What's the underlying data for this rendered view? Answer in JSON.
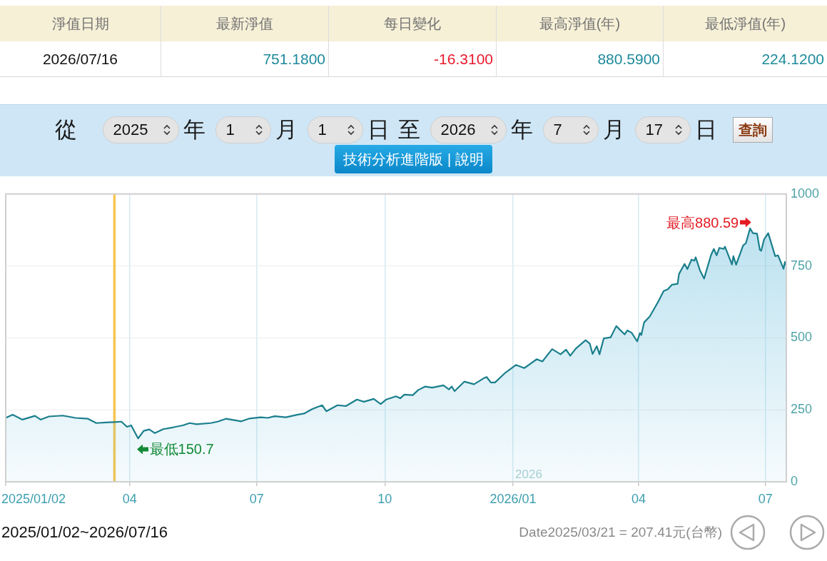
{
  "chart_data": [
    {
      "type": "other",
      "categories": [
        "淨值日期",
        "最新淨值",
        "每日變化",
        "最高淨值(年)",
        "最低淨值(年)"
      ],
      "annotations": [
        "2026/07/16",
        "751.1800",
        "-16.3100",
        "880.5900",
        "224.1200"
      ]
    },
    {
      "type": "other",
      "annotations": [
        "從",
        "2025",
        "年",
        "1",
        "月",
        "1",
        "日",
        "至",
        "2026",
        "年",
        "7",
        "月",
        "17",
        "日",
        "查詢",
        "技術分析進階版 | 說明"
      ]
    },
    {
      "type": "area",
      "color": "#1a7f8c",
      "x": [
        "2025-01-02",
        "2025-01-07",
        "2025-01-14",
        "2025-01-23",
        "2025-01-27",
        "2025-02-02",
        "2025-02-12",
        "2025-02-21",
        "2025-03-02",
        "2025-03-08",
        "2025-03-15",
        "2025-03-21",
        "2025-03-26",
        "2025-03-30",
        "2025-04-02",
        "2025-04-07",
        "2025-04-11",
        "2025-04-15",
        "2025-04-19",
        "2025-04-25",
        "2025-05-02",
        "2025-05-09",
        "2025-05-14",
        "2025-05-19",
        "2025-05-29",
        "2025-06-03",
        "2025-06-09",
        "2025-06-20",
        "2025-06-26",
        "2025-07-04",
        "2025-07-09",
        "2025-07-14",
        "2025-07-22",
        "2025-07-30",
        "2025-08-04",
        "2025-08-10",
        "2025-08-17",
        "2025-08-20",
        "2025-08-28",
        "2025-09-03",
        "2025-09-11",
        "2025-09-16",
        "2025-09-23",
        "2025-09-28",
        "2025-10-02",
        "2025-10-09",
        "2025-10-12",
        "2025-10-15",
        "2025-10-21",
        "2025-10-25",
        "2025-10-30",
        "2025-11-04",
        "2025-11-12",
        "2025-11-16",
        "2025-11-18",
        "2025-11-20",
        "2025-11-27",
        "2025-12-04",
        "2025-12-11",
        "2025-12-13",
        "2025-12-16",
        "2025-12-19",
        "2025-12-26",
        "2026-01-03",
        "2026-01-09",
        "2026-01-18",
        "2026-01-22",
        "2026-01-29",
        "2026-02-04",
        "2026-02-08",
        "2026-02-11",
        "2026-02-15",
        "2026-02-22",
        "2026-02-25",
        "2026-02-27",
        "2026-03-02",
        "2026-03-04",
        "2026-03-07",
        "2026-03-12",
        "2026-03-16",
        "2026-03-22",
        "2026-03-24",
        "2026-03-27",
        "2026-03-31",
        "2026-04-02",
        "2026-04-03",
        "2026-04-05",
        "2026-04-09",
        "2026-04-15",
        "2026-04-19",
        "2026-04-22",
        "2026-04-25",
        "2026-04-29",
        "2026-04-30",
        "2026-05-04",
        "2026-05-06",
        "2026-05-09",
        "2026-05-11",
        "2026-05-12",
        "2026-05-15",
        "2026-05-18",
        "2026-05-23",
        "2026-05-25",
        "2026-05-27",
        "2026-05-29",
        "2026-06-01",
        "2026-06-02",
        "2026-06-07",
        "2026-06-08",
        "2026-06-10",
        "2026-06-15",
        "2026-06-17",
        "2026-06-20",
        "2026-06-22",
        "2026-06-25",
        "2026-06-27",
        "2026-06-28",
        "2026-06-30",
        "2026-07-03",
        "2026-07-08",
        "2026-07-10",
        "2026-07-14",
        "2026-07-15",
        "2026-07-16"
      ],
      "values": [
        222,
        233,
        216,
        229,
        216,
        227,
        230,
        222,
        219,
        204,
        206,
        207.41,
        209,
        191,
        196,
        150.7,
        177,
        182,
        169,
        183,
        189,
        196,
        204,
        200,
        204,
        209,
        219,
        210,
        220,
        224,
        222,
        228,
        224,
        233,
        237,
        253,
        266,
        245,
        266,
        263,
        286,
        278,
        288,
        270,
        286,
        297,
        290,
        303,
        301,
        319,
        331,
        327,
        335,
        321,
        331,
        315,
        348,
        339,
        360,
        364,
        345,
        345,
        377,
        406,
        395,
        426,
        418,
        461,
        443,
        459,
        438,
        463,
        492,
        480,
        444,
        471,
        443,
        498,
        502,
        541,
        512,
        526,
        518,
        488,
        517,
        510,
        554,
        574,
        625,
        663,
        669,
        685,
        688,
        722,
        757,
        739,
        772,
        768,
        780,
        735,
        706,
        788,
        809,
        787,
        813,
        809,
        817,
        755,
        784,
        754,
        821,
        829,
        880.59,
        864,
        862,
        806,
        803,
        842,
        864,
        784,
        787,
        740,
        764,
        751.18
      ],
      "xlim": [
        "2025-01-02",
        "2026-07-16"
      ],
      "xticks": [
        {
          "value": "2025-01-02",
          "label": "2025/01/02"
        },
        {
          "value": "2025-04-01",
          "label": "04"
        },
        {
          "value": "2025-07-01",
          "label": "07"
        },
        {
          "value": "2025-10-01",
          "label": "10"
        },
        {
          "value": "2026-01-01",
          "label": "2026/01"
        },
        {
          "value": "2026-04-01",
          "label": "04"
        },
        {
          "value": "2026-07-01",
          "label": "07"
        }
      ],
      "ylim": [
        0,
        1000
      ],
      "yticks": [
        0,
        250,
        500,
        750,
        1000
      ],
      "grid": true,
      "ref_lines": [
        {
          "axis": "x",
          "value": "2025-03-21",
          "color": "#f6c54e"
        }
      ],
      "annotations": [
        {
          "text": "最高880.59",
          "x": "2026-06-20",
          "y": 880.59
        },
        {
          "text": "最低150.7",
          "x": "2025-04-07",
          "y": 150.7
        },
        "2025/01/02~2026/07/16",
        "Date2025/03/21 = 207.41元(台幣)",
        "2026"
      ]
    }
  ]
}
